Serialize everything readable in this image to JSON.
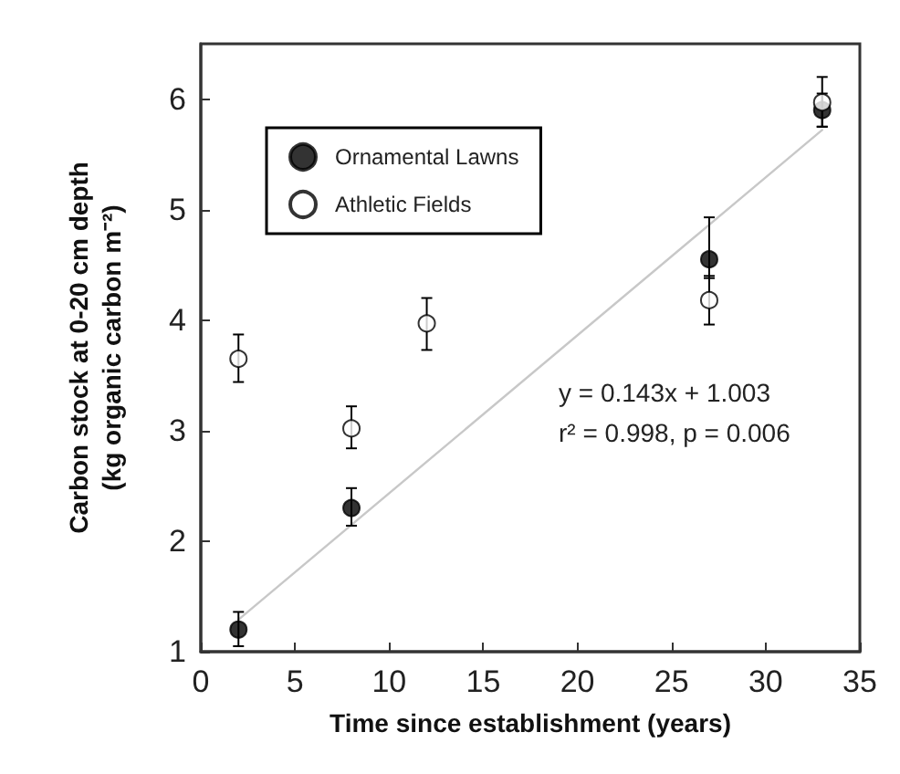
{
  "chart_data": {
    "type": "scatter",
    "xlabel": "Time since establishment (years)",
    "ylabel": "Carbon stock at 0-20 cm depth\n(kg organic carbon m⁻²)",
    "xlim": [
      0,
      35
    ],
    "xticks": [
      0,
      5,
      10,
      15,
      20,
      25,
      30,
      35
    ],
    "ylim": [
      1,
      6.5
    ],
    "yticks": [
      1,
      2,
      3,
      4,
      5,
      6
    ],
    "grid": false,
    "legend": "top left",
    "marker": "circle",
    "annotations": [
      "y = 0.143x + 1.003",
      "r² = 0.998, p = 0.006"
    ],
    "series": [
      {
        "name": "Ornamental Lawns",
        "color": "#000000",
        "x": [
          2,
          8,
          27,
          33
        ],
        "values": [
          1.2,
          2.3,
          4.55,
          5.9
        ],
        "errors": [
          [
            1.05,
            1.36
          ],
          [
            2.14,
            2.48
          ],
          [
            4.38,
            4.93
          ],
          [
            5.75,
            6.05
          ]
        ]
      },
      {
        "name": "Athletic Fields",
        "color": "#ffffff",
        "x": [
          2,
          8,
          12,
          27,
          33
        ],
        "values": [
          3.65,
          3.02,
          3.97,
          4.18,
          5.97
        ],
        "errors": [
          [
            3.44,
            3.87
          ],
          [
            2.84,
            3.22
          ],
          [
            3.73,
            4.2
          ],
          [
            3.96,
            4.4
          ],
          [
            5.75,
            6.2
          ]
        ]
      },
      {
        "type": "line",
        "color": "#c8c8c8",
        "x": [
          2,
          33
        ],
        "values": [
          1.29,
          5.72
        ],
        "marker": "none"
      }
    ]
  }
}
